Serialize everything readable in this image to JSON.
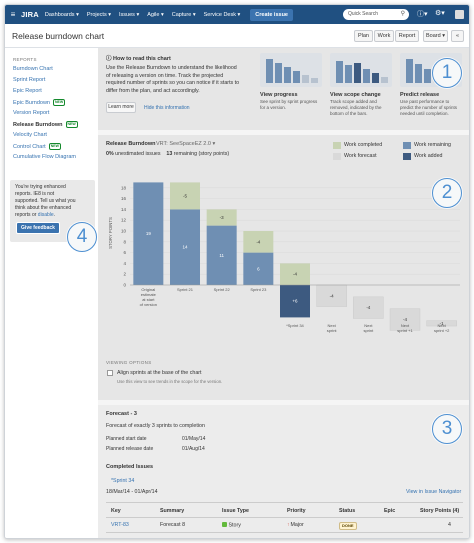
{
  "topnav": {
    "logo": "JIRA",
    "menu": [
      "Dashboards ▾",
      "Projects ▾",
      "Issues ▾",
      "Agile ▾",
      "Capture ▾",
      "Service Desk ▾"
    ],
    "create_label": "Create issue",
    "search_placeholder": "Quick Search",
    "bg_color": "#205081"
  },
  "header": {
    "title": "Release burndown chart",
    "buttons": [
      "Plan",
      "Work",
      "Report",
      "Board ▾"
    ],
    "collapse_label": "«"
  },
  "sidebar": {
    "heading": "REPORTS",
    "items": [
      {
        "label": "Burndown Chart",
        "new": ""
      },
      {
        "label": "Sprint Report",
        "new": ""
      },
      {
        "label": "Epic Report",
        "new": ""
      },
      {
        "label": "Epic Burndown",
        "new": "NEW"
      },
      {
        "label": "Version Report",
        "new": ""
      },
      {
        "label": "Release Burndown",
        "new": "NEW"
      },
      {
        "label": "Velocity Chart",
        "new": ""
      },
      {
        "label": "Control Chart",
        "new": "NEW"
      },
      {
        "label": "Cumulative Flow Diagram",
        "new": ""
      }
    ],
    "enhanced": {
      "line1": "You're trying enhanced",
      "line2": "reports. IE8 is not",
      "line3": "supported. Tell us what you",
      "line4": "think about the enhanced",
      "line5_prefix": "reports or ",
      "line5_link": "disable",
      "line5_suffix": ".",
      "feedback_label": "Give feedback"
    }
  },
  "help": {
    "title": "How to read this chart",
    "text_lines": [
      "Use the Release Burndown to understand the likelihood",
      "of releasing a version on time. Track the projected",
      "required number of sprints so you can notice if it starts to",
      "differ from the plan, and act accordingly."
    ],
    "learn_more": "Learn more",
    "hide_link": "Hide this information",
    "thumbs": [
      {
        "title": "View progress",
        "desc_lines": [
          "See sprint by sprint progress",
          "for a version."
        ]
      },
      {
        "title": "View scope change",
        "desc_lines": [
          "Track scope added and",
          "removed, indicated by the",
          "bottom of the bars."
        ]
      },
      {
        "title": "Predict release",
        "desc_lines": [
          "Use past performance to",
          "predict the number of sprints",
          "needed until completion."
        ]
      }
    ]
  },
  "burndown": {
    "title": "Release Burndown",
    "version": "VRT: SeeSpaceEZ 2.0 ▾",
    "stats_count1": "0%",
    "stats_label1": "unestimated issues",
    "stats_count2": "13",
    "stats_label2": "remaining (story points)",
    "legend": [
      {
        "label": "Work completed",
        "color": "#c8d3b3"
      },
      {
        "label": "Work remaining",
        "color": "#6f8fb3"
      },
      {
        "label": "Work forecast",
        "color": "#d9d9d9"
      },
      {
        "label": "Work added",
        "color": "#3d5a80"
      }
    ],
    "viewing_options": "VIEWING OPTIONS",
    "align_label": "Align sprints at the base of the chart",
    "align_hint": "Use this view to see trends in the scope for the version."
  },
  "chart_data": {
    "type": "bar",
    "ylabel": "STORY POINTS",
    "xlabel": "SPRINTS",
    "ylim": [
      -12,
      18
    ],
    "yticks": [
      18,
      16,
      14,
      12,
      10,
      8,
      6,
      4,
      2,
      0
    ],
    "categories": [
      "Original estimate at start of version",
      "Sprint 21",
      "Sprint 22",
      "Sprint 23",
      "*Sprint 34",
      "Next sprint",
      "Next sprint",
      "Next sprint +1",
      "Next sprint +2"
    ],
    "series": [
      {
        "name": "Work remaining",
        "values": [
          19,
          14,
          11,
          6,
          0,
          0,
          0,
          0,
          0
        ],
        "labels": [
          "19",
          "14",
          "11",
          "6",
          "",
          "",
          "",
          "",
          ""
        ]
      },
      {
        "name": "Work completed",
        "values": [
          0,
          5,
          3,
          4,
          4,
          0,
          0,
          0,
          0
        ],
        "labels": [
          "",
          "-5",
          "-3",
          "-4",
          "-4",
          "",
          "",
          "",
          ""
        ]
      },
      {
        "name": "Work forecast",
        "values": [
          0,
          0,
          0,
          0,
          0,
          4,
          4,
          4,
          1
        ],
        "labels": [
          "",
          "",
          "",
          "",
          "",
          "-4",
          "-4",
          "-4",
          "-1"
        ]
      },
      {
        "name": "Work added",
        "values": [
          0,
          0,
          0,
          0,
          6,
          0,
          0,
          0,
          0
        ],
        "labels": [
          "",
          "",
          "",
          "",
          "+6",
          "",
          "",
          "",
          ""
        ]
      }
    ]
  },
  "forecast": {
    "title": "Forecast - 3",
    "desc": "Forecast of exactly 3 sprints to completion",
    "start_label": "Planned start date",
    "start_value": "01/May/14",
    "release_label": "Planned release date",
    "release_value": "01/Aug/14",
    "completed_title": "Completed Issues",
    "sprint_name": "*Sprint 34",
    "sprint_dates": "18/Mar/14 - 01/Apr/14",
    "navigator_link": "View in Issue Navigator",
    "columns": [
      "Key",
      "Summary",
      "Issue Type",
      "Priority",
      "Status",
      "Epic",
      "Story Points (4)"
    ],
    "rows": [
      {
        "key": "VRT-83",
        "summary": "Forecast 8",
        "type": "Story",
        "priority": "Major",
        "status": "DONE",
        "epic": "",
        "points": "4"
      }
    ]
  },
  "callouts": [
    "1",
    "2",
    "3",
    "4"
  ]
}
